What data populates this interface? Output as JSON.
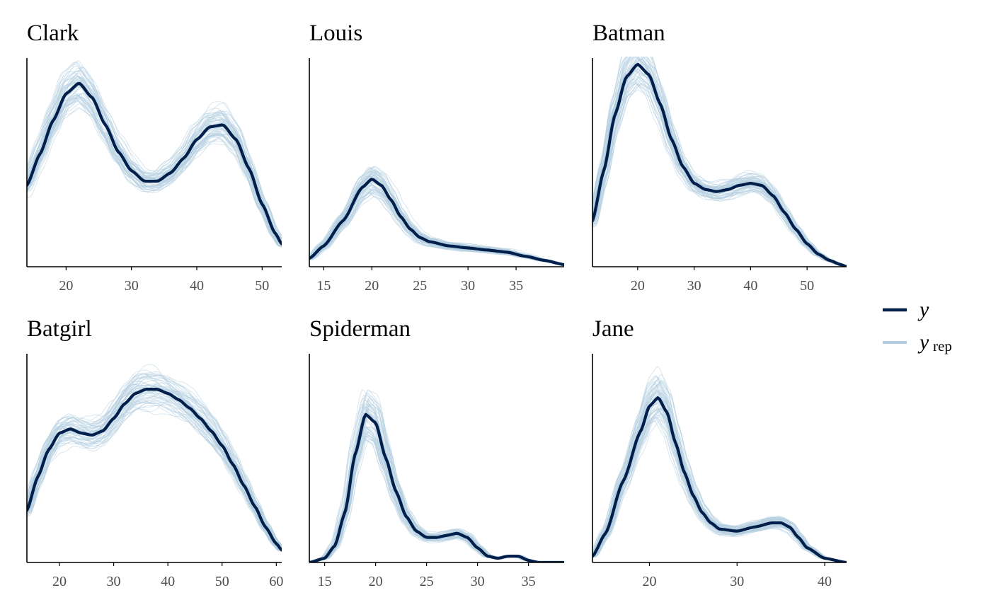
{
  "colors": {
    "y": "#011f4b",
    "y_rep": "#b3cde0"
  },
  "legend": {
    "position": "right",
    "items": [
      {
        "key": "y",
        "label": "y",
        "sub": ""
      },
      {
        "key": "y_rep",
        "label": "y",
        "sub": "rep"
      }
    ]
  },
  "chart_data": [
    {
      "type": "line",
      "title": "Clark",
      "xlim": [
        14,
        53
      ],
      "xticks": [
        20,
        30,
        40,
        50
      ],
      "x": [
        14,
        16,
        18,
        20,
        22,
        24,
        26,
        28,
        30,
        32,
        34,
        36,
        38,
        40,
        42,
        44,
        46,
        48,
        50,
        52,
        53
      ],
      "series": [
        {
          "name": "y",
          "values": [
            0.39,
            0.54,
            0.7,
            0.83,
            0.88,
            0.81,
            0.68,
            0.55,
            0.46,
            0.41,
            0.41,
            0.45,
            0.52,
            0.61,
            0.67,
            0.68,
            0.61,
            0.47,
            0.3,
            0.16,
            0.11
          ]
        }
      ],
      "rep_count": 60,
      "rep_spread": 0.09
    },
    {
      "type": "line",
      "title": "Louis",
      "xlim": [
        13.5,
        40
      ],
      "xticks": [
        15,
        20,
        25,
        30,
        35
      ],
      "x": [
        13.5,
        15,
        17,
        19,
        20,
        21,
        22,
        23,
        24,
        25,
        26,
        28,
        30,
        32,
        34,
        36,
        38,
        40
      ],
      "series": [
        {
          "name": "y",
          "values": [
            0.04,
            0.1,
            0.22,
            0.38,
            0.42,
            0.39,
            0.32,
            0.24,
            0.18,
            0.14,
            0.12,
            0.1,
            0.09,
            0.08,
            0.07,
            0.05,
            0.03,
            0.01
          ]
        }
      ],
      "rep_count": 60,
      "rep_spread": 0.12
    },
    {
      "type": "line",
      "title": "Batman",
      "xlim": [
        12,
        57
      ],
      "xticks": [
        20,
        30,
        40,
        50
      ],
      "x": [
        12,
        14,
        16,
        18,
        20,
        22,
        24,
        26,
        28,
        30,
        32,
        34,
        36,
        38,
        40,
        42,
        44,
        46,
        48,
        50,
        52,
        54,
        56,
        57
      ],
      "series": [
        {
          "name": "y",
          "values": [
            0.22,
            0.46,
            0.73,
            0.91,
            0.97,
            0.92,
            0.78,
            0.61,
            0.48,
            0.4,
            0.37,
            0.36,
            0.37,
            0.39,
            0.4,
            0.39,
            0.34,
            0.26,
            0.18,
            0.11,
            0.06,
            0.03,
            0.01,
            0.0
          ]
        }
      ],
      "rep_count": 60,
      "rep_spread": 0.08
    },
    {
      "type": "line",
      "title": "Batgirl",
      "xlim": [
        14,
        61
      ],
      "xticks": [
        20,
        30,
        40,
        50,
        60
      ],
      "x": [
        14,
        16,
        18,
        20,
        22,
        24,
        26,
        28,
        30,
        32,
        34,
        36,
        38,
        40,
        42,
        44,
        46,
        48,
        50,
        52,
        54,
        56,
        58,
        60,
        61
      ],
      "series": [
        {
          "name": "y",
          "values": [
            0.25,
            0.41,
            0.54,
            0.62,
            0.64,
            0.62,
            0.61,
            0.63,
            0.69,
            0.76,
            0.81,
            0.83,
            0.83,
            0.81,
            0.78,
            0.74,
            0.69,
            0.63,
            0.56,
            0.47,
            0.37,
            0.27,
            0.17,
            0.09,
            0.06
          ]
        }
      ],
      "rep_count": 60,
      "rep_spread": 0.08
    },
    {
      "type": "line",
      "title": "Spiderman",
      "xlim": [
        13.5,
        38.5
      ],
      "xticks": [
        15,
        20,
        25,
        30,
        35
      ],
      "x": [
        13.5,
        15,
        16,
        17,
        18,
        19,
        20,
        21,
        22,
        23,
        24,
        25,
        26,
        27,
        28,
        29,
        30,
        31,
        32,
        33,
        34,
        35,
        36,
        37,
        38.5
      ],
      "series": [
        {
          "name": "y",
          "values": [
            0.0,
            0.02,
            0.08,
            0.24,
            0.52,
            0.71,
            0.67,
            0.5,
            0.34,
            0.22,
            0.15,
            0.12,
            0.12,
            0.13,
            0.14,
            0.12,
            0.07,
            0.03,
            0.02,
            0.03,
            0.03,
            0.01,
            0.0,
            0.0,
            0.0
          ]
        }
      ],
      "rep_count": 60,
      "rep_spread": 0.12
    },
    {
      "type": "line",
      "title": "Jane",
      "xlim": [
        13.5,
        42.5
      ],
      "xticks": [
        20,
        30,
        40
      ],
      "x": [
        13.5,
        15,
        17,
        19,
        20,
        21,
        22,
        23,
        24,
        25,
        26,
        27,
        28,
        30,
        32,
        34,
        35,
        36,
        37,
        38,
        40,
        42.5
      ],
      "series": [
        {
          "name": "y",
          "values": [
            0.03,
            0.14,
            0.39,
            0.63,
            0.75,
            0.79,
            0.72,
            0.57,
            0.43,
            0.32,
            0.24,
            0.19,
            0.16,
            0.15,
            0.17,
            0.19,
            0.19,
            0.17,
            0.12,
            0.07,
            0.02,
            0.0
          ]
        }
      ],
      "rep_count": 60,
      "rep_spread": 0.1
    }
  ]
}
